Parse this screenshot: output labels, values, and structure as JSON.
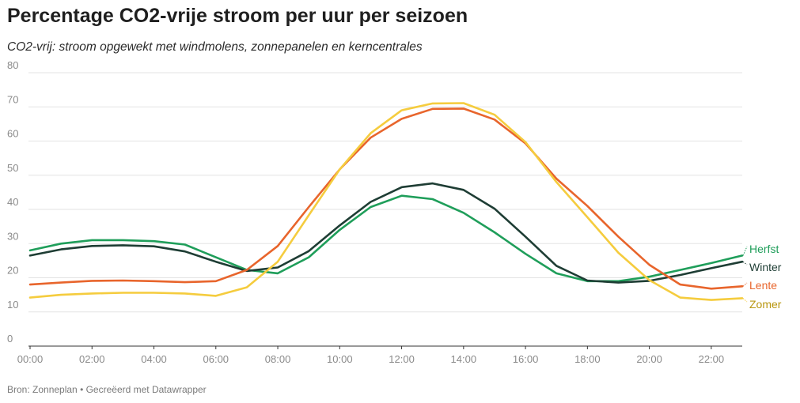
{
  "title": "Percentage CO2-vrije stroom per uur per seizoen",
  "subtitle": "CO2-vrij: stroom opgewekt met windmolens, zonnepanelen en kerncentrales",
  "footer": "Bron: Zonneplan • Gecreëerd met Datawrapper",
  "chart_data": {
    "type": "line",
    "title": "Percentage CO2-vrije stroom per uur per seizoen",
    "subtitle": "CO2-vrij: stroom opgewekt met windmolens, zonnepanelen en kerncentrales",
    "xlabel": "",
    "ylabel": "",
    "ylim": [
      0,
      80
    ],
    "yticks": [
      0,
      10,
      20,
      30,
      40,
      50,
      60,
      70,
      80
    ],
    "grid": true,
    "legend": "direct labels at line ends (right)",
    "x": [
      "00:00",
      "01:00",
      "02:00",
      "03:00",
      "04:00",
      "05:00",
      "06:00",
      "07:00",
      "08:00",
      "09:00",
      "10:00",
      "11:00",
      "12:00",
      "13:00",
      "14:00",
      "15:00",
      "16:00",
      "17:00",
      "18:00",
      "19:00",
      "20:00",
      "21:00",
      "22:00",
      "23:00"
    ],
    "xtick_labels": [
      "00:00",
      "02:00",
      "04:00",
      "06:00",
      "08:00",
      "10:00",
      "12:00",
      "14:00",
      "16:00",
      "18:00",
      "20:00",
      "22:00"
    ],
    "series": [
      {
        "name": "Herfst",
        "color": "#1f9e5a",
        "values": [
          28,
          30,
          31,
          31,
          30.7,
          29.7,
          26,
          22.3,
          21.3,
          26,
          34,
          40.7,
          44,
          43,
          39,
          33.3,
          27,
          21.3,
          19,
          19,
          20.3,
          22.3,
          24.3,
          26.5
        ]
      },
      {
        "name": "Winter",
        "color": "#1e3d34",
        "values": [
          26.5,
          28.3,
          29.3,
          29.5,
          29.2,
          27.7,
          24.7,
          22,
          23,
          27.8,
          35.3,
          42.2,
          46.5,
          47.6,
          45.7,
          40.2,
          32,
          23.5,
          19.2,
          18.6,
          19.1,
          20.8,
          22.8,
          24.7
        ]
      },
      {
        "name": "Lente",
        "color": "#e8652c",
        "values": [
          18,
          18.6,
          19.1,
          19.2,
          19,
          18.7,
          19,
          22.3,
          29.3,
          40.7,
          51.7,
          61,
          66.5,
          69.4,
          69.5,
          66.3,
          59.3,
          49,
          41,
          32,
          23.8,
          18,
          16.8,
          17.5
        ]
      },
      {
        "name": "Zomer",
        "color": "#f5cc3e",
        "values": [
          14.2,
          15,
          15.4,
          15.6,
          15.6,
          15.4,
          14.7,
          17.2,
          24.7,
          38.3,
          51.7,
          62.3,
          69,
          71,
          71.1,
          67.7,
          59.7,
          48,
          37.7,
          27.3,
          19.3,
          14.2,
          13.5,
          14
        ]
      }
    ]
  }
}
